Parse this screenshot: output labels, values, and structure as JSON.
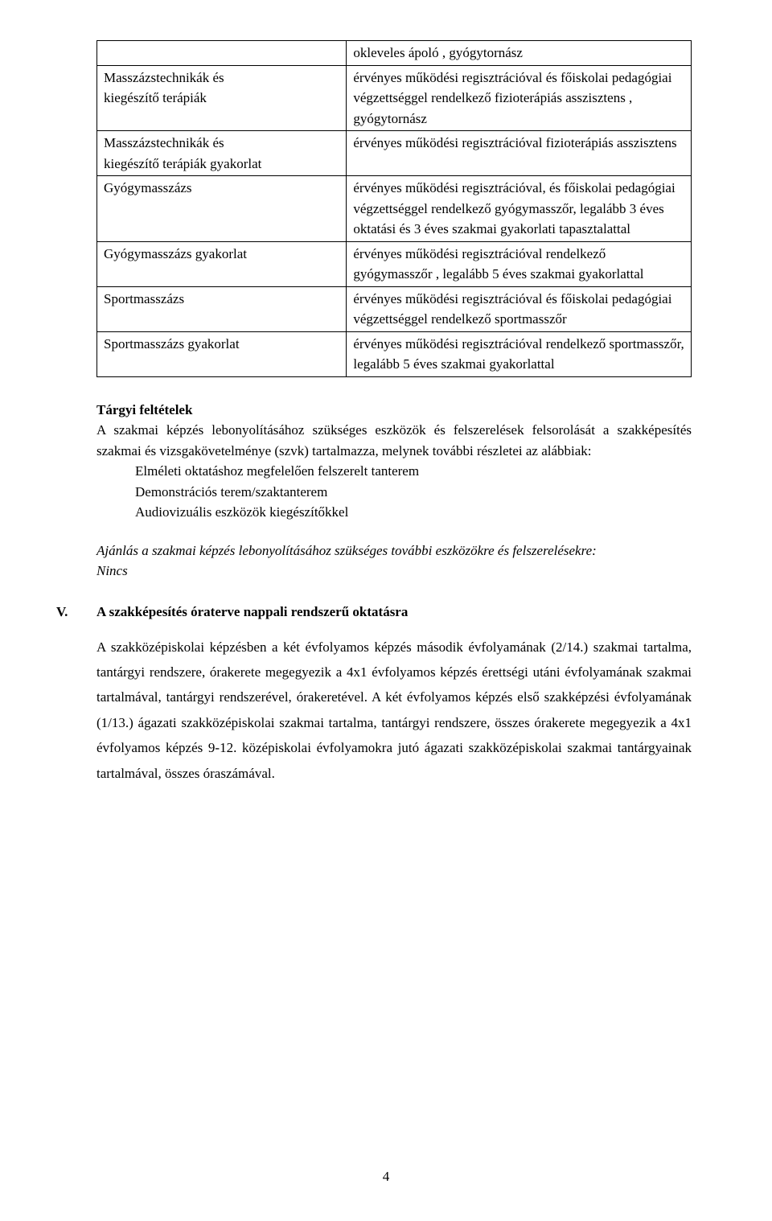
{
  "table": {
    "rows": [
      {
        "left": "",
        "right": "okleveles ápoló , gyógytornász"
      },
      {
        "left": "Masszázstechnikák és\nkiegészítő terápiák",
        "right": "érvényes működési regisztrációval és főiskolai pedagógiai végzettséggel rendelkező fizioterápiás asszisztens , gyógytornász"
      },
      {
        "left": "Masszázstechnikák és\nkiegészítő terápiák gyakorlat",
        "right": "érvényes működési regisztrációval fizioterápiás asszisztens"
      },
      {
        "left": "Gyógymasszázs",
        "right": "érvényes működési regisztrációval, és főiskolai pedagógiai végzettséggel rendelkező gyógymasszőr, legalább 3 éves oktatási és 3 éves szakmai gyakorlati tapasztalattal"
      },
      {
        "left": "Gyógymasszázs gyakorlat",
        "right": "érvényes működési regisztrációval rendelkező gyógymasszőr , legalább 5 éves szakmai gyakorlattal"
      },
      {
        "left": "Sportmasszázs",
        "right": "érvényes működési regisztrációval és főiskolai pedagógiai végzettséggel rendelkező sportmasszőr"
      },
      {
        "left": "Sportmasszázs gyakorlat",
        "right": "érvényes működési regisztrációval rendelkező sportmasszőr, legalább 5 éves szakmai gyakorlattal"
      }
    ]
  },
  "targyi": {
    "title": "Tárgyi feltételek",
    "body": "A szakmai képzés lebonyolításához szükséges eszközök és felszerelések felsorolását a szakképesítés szakmai és vizsgakövetelménye (szvk) tartalmazza, melynek további részletei az alábbiak:",
    "items": [
      "Elméleti oktatáshoz megfelelően felszerelt tanterem",
      "Demonstrációs terem/szaktanterem",
      "Audiovizuális eszközök kiegészítőkkel"
    ]
  },
  "ajanlas": {
    "line1": "Ajánlás a szakmai képzés lebonyolításához szükséges további eszközökre és felszerelésekre:",
    "line2": "Nincs"
  },
  "section": {
    "num": "V.",
    "title": "A szakképesítés óraterve nappali rendszerű oktatásra",
    "body": "A szakközépiskolai képzésben a két évfolyamos képzés második évfolyamának (2/14.) szakmai tartalma, tantárgyi rendszere, órakerete megegyezik a 4x1 évfolyamos képzés érettségi utáni évfolyamának szakmai tartalmával, tantárgyi rendszerével, órakeretével. A két évfolyamos képzés első szakképzési évfolyamának (1/13.) ágazati szakközépiskolai szakmai tartalma, tantárgyi rendszere, összes órakerete megegyezik a 4x1 évfolyamos képzés 9-12. középiskolai évfolyamokra jutó ágazati szakközépiskolai szakmai tantárgyainak tartalmával, összes óraszámával."
  },
  "pageNumber": "4"
}
